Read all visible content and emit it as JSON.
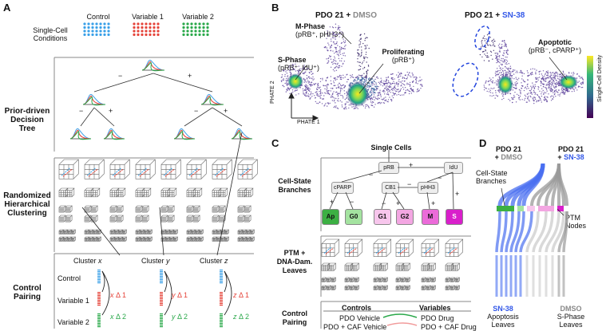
{
  "panelA": {
    "label": "A",
    "conditions_title": "Single-Cell\nConditions",
    "conditions": [
      "Control",
      "Variable 1",
      "Variable 2"
    ],
    "condition_colors": [
      "#3aa0e8",
      "#e5443a",
      "#2aa84a"
    ],
    "tree_title": "Prior-driven\nDecision Tree",
    "clustering_title": "Randomized\nHierarchical\nClustering",
    "pairing_title": "Control\nPairing",
    "minus": "−",
    "plus": "+",
    "clusters": [
      {
        "name": "Cluster x",
        "var": "x"
      },
      {
        "name": "Cluster y",
        "var": "y"
      },
      {
        "name": "Cluster z",
        "var": "z"
      }
    ],
    "rows": [
      "Control",
      "Variable 1",
      "Variable 2"
    ],
    "deltas": [
      "Δ 1",
      "Δ 2"
    ]
  },
  "panelB": {
    "label": "B",
    "title_left_prefix": "PDO 21 + ",
    "title_left_drug": "DMSO",
    "title_right_prefix": "PDO 21 + ",
    "title_right_drug": "SN-38",
    "mphase": "M-Phase",
    "mphase_sub": "(pRB⁺, pHH3⁺)",
    "sphase": "S-Phase",
    "sphase_sub": "(pRB⁺, IdU⁺)",
    "prolif": "Proliferating",
    "prolif_sub": "(pRB⁺)",
    "apop": "Apoptotic",
    "apop_sub": "(pRB⁻, cPARP⁺)",
    "xaxis": "PHATE 1",
    "yaxis": "PHATE 2",
    "colorbar": "Single-Cell Density"
  },
  "panelC": {
    "label": "C",
    "single_cells": "Single Cells",
    "branches_title": "Cell-State\nBranches",
    "ptm_title": "PTM +\nDNA-Dam.\nLeaves",
    "pairing_title": "Control\nPairing",
    "nodes": [
      "pRB",
      "IdU",
      "cPARP",
      "CB1",
      "pHH3"
    ],
    "leaves": [
      {
        "name": "Ap",
        "color": "#3cb043"
      },
      {
        "name": "G0",
        "color": "#a4e3a0"
      },
      {
        "name": "G1",
        "color": "#f7c6ec"
      },
      {
        "name": "G2",
        "color": "#f3a6e2"
      },
      {
        "name": "M",
        "color": "#eb6bd9"
      },
      {
        "name": "S",
        "color": "#d91fcb"
      }
    ],
    "controls_header": "Controls",
    "variables_header": "Variables",
    "controls": [
      "PDO Vehicle",
      "PDO + CAF Vehicle"
    ],
    "variables": [
      "PDO Drug",
      "PDO + CAF Drug"
    ]
  },
  "panelD": {
    "label": "D",
    "left_top": "PDO 21",
    "left_bottom": "+ DMSO",
    "right_top": "PDO 21",
    "right_bottom": "+ SN-38",
    "branches": "Cell-State\nBranches",
    "ptm_nodes": "PTM\nNodes",
    "sn38_title": "SN-38",
    "sn38_sub": "Apoptosis\nLeaves",
    "dmso_title": "DMSO",
    "dmso_sub": "S-Phase\nLeaves",
    "blue": "#4a6ff0",
    "grey": "#9a9a9a"
  }
}
